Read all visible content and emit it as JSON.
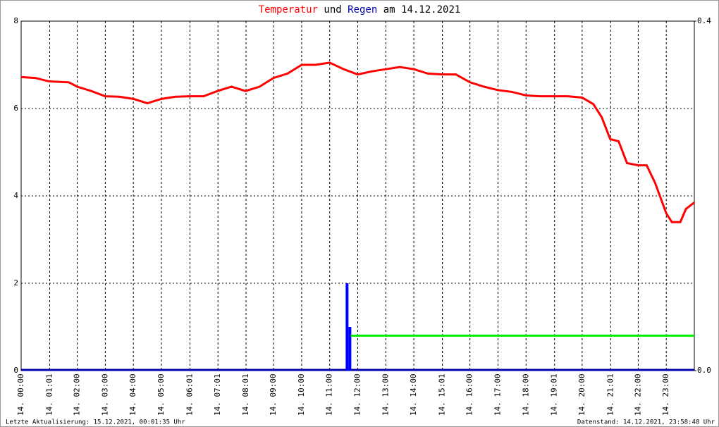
{
  "chart_data": {
    "type": "line",
    "title_parts": [
      "Temperatur",
      "und",
      "Regen",
      "am 14.12.2021"
    ],
    "footer_left": "Letzte Aktualisierung: 15.12.2021, 00:01:35 Uhr",
    "footer_right": "Datenstand: 14.12.2021, 23:58:48 Uhr",
    "xlim": [
      0,
      24
    ],
    "xticks": [
      {
        "value": 0,
        "label": "14. 00:00"
      },
      {
        "value": 1.017,
        "label": "14. 01:01"
      },
      {
        "value": 2,
        "label": "14. 02:00"
      },
      {
        "value": 3,
        "label": "14. 03:00"
      },
      {
        "value": 4,
        "label": "14. 04:00"
      },
      {
        "value": 5,
        "label": "14. 05:00"
      },
      {
        "value": 6.017,
        "label": "14. 06:01"
      },
      {
        "value": 7.017,
        "label": "14. 07:01"
      },
      {
        "value": 8.017,
        "label": "14. 08:01"
      },
      {
        "value": 9,
        "label": "14. 09:00"
      },
      {
        "value": 10,
        "label": "14. 10:00"
      },
      {
        "value": 11,
        "label": "14. 11:00"
      },
      {
        "value": 12,
        "label": "14. 12:00"
      },
      {
        "value": 13,
        "label": "14. 13:00"
      },
      {
        "value": 14,
        "label": "14. 14:00"
      },
      {
        "value": 15.017,
        "label": "14. 15:01"
      },
      {
        "value": 16,
        "label": "14. 16:00"
      },
      {
        "value": 17,
        "label": "14. 17:00"
      },
      {
        "value": 18,
        "label": "14. 18:00"
      },
      {
        "value": 19.017,
        "label": "14. 19:01"
      },
      {
        "value": 20,
        "label": "14. 20:00"
      },
      {
        "value": 21.017,
        "label": "14. 21:01"
      },
      {
        "value": 22,
        "label": "14. 22:00"
      },
      {
        "value": 23,
        "label": "14. 23:00"
      }
    ],
    "ylim": [
      0,
      8
    ],
    "yticks": [
      0,
      2,
      4,
      6,
      8
    ],
    "y2lim": [
      0,
      0.4
    ],
    "y2ticks": [
      {
        "value": 0,
        "label": "0.0"
      },
      {
        "value": 0.4,
        "label": "0.4"
      }
    ],
    "grid": true,
    "series": [
      {
        "name": "Temperatur",
        "color": "#ff0000",
        "kind": "line",
        "x": [
          0,
          0.5,
          1,
          1.7,
          2,
          2.5,
          3,
          3.5,
          4,
          4.5,
          5,
          5.5,
          6,
          6.5,
          7,
          7.5,
          8,
          8.5,
          9,
          9.5,
          10,
          10.5,
          11,
          11.5,
          12,
          12.5,
          13,
          13.5,
          14,
          14.5,
          15,
          15.5,
          16,
          16.5,
          17,
          17.5,
          18,
          18.5,
          19,
          19.5,
          20,
          20.4,
          20.7,
          21,
          21.3,
          21.6,
          22,
          22.3,
          22.6,
          23,
          23.2,
          23.5,
          23.7,
          24
        ],
        "values": [
          6.72,
          6.7,
          6.62,
          6.6,
          6.5,
          6.4,
          6.28,
          6.27,
          6.22,
          6.12,
          6.22,
          6.27,
          6.28,
          6.28,
          6.4,
          6.5,
          6.4,
          6.5,
          6.7,
          6.8,
          7.0,
          7.0,
          7.05,
          6.9,
          6.78,
          6.85,
          6.9,
          6.95,
          6.9,
          6.8,
          6.78,
          6.78,
          6.6,
          6.5,
          6.42,
          6.38,
          6.3,
          6.28,
          6.28,
          6.28,
          6.25,
          6.1,
          5.8,
          5.3,
          5.25,
          4.75,
          4.7,
          4.7,
          4.3,
          3.6,
          3.4,
          3.4,
          3.7,
          3.85
        ]
      },
      {
        "name": "Regen",
        "color": "#0000ff",
        "kind": "bar",
        "axis": "y2",
        "x": [
          11.62,
          11.72
        ],
        "values": [
          0.1,
          0.05
        ]
      },
      {
        "color": "#00ee00",
        "kind": "line",
        "axis": "y2",
        "x": [
          11.75,
          24
        ],
        "values": [
          0.04,
          0.04
        ]
      }
    ]
  }
}
